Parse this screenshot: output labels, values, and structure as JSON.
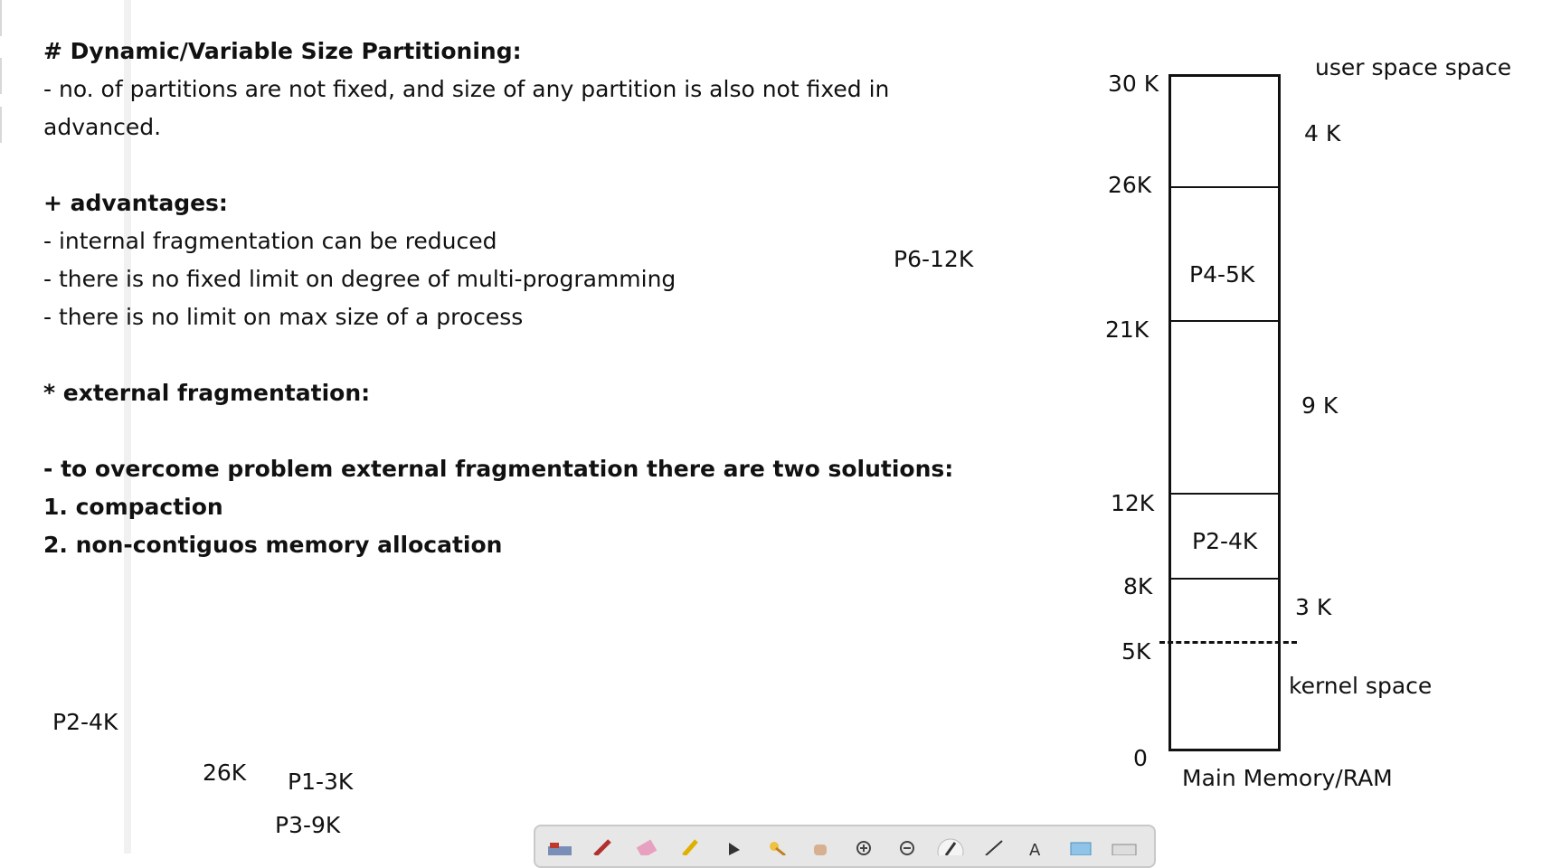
{
  "notes": {
    "heading": "# Dynamic/Variable Size Partitioning:",
    "line1": "- no. of partitions are not fixed, and size of any partition is also not fixed in",
    "line2": "advanced.",
    "adv_heading": "+ advantages:",
    "adv1": "- internal fragmentation can be reduced",
    "adv2": "- there is no fixed limit on degree of multi-programming",
    "adv3": "- there is no limit on max size of a process",
    "ext_heading": "* external fragmentation:",
    "solution_intro": "- to overcome problem external fragmentation there are two solutions:",
    "sol1": "1. compaction",
    "sol2": "2. non-contiguos memory allocation"
  },
  "floating": {
    "p6": "P6-12K",
    "p2_left": "P2-4K",
    "k26_left": "26K",
    "p1": "P1-3K",
    "p3": "P3-9K"
  },
  "memory": {
    "title": "Main Memory/RAM",
    "user_space": "user space space",
    "kernel_space": "kernel space",
    "addresses": [
      "30 K",
      "26K",
      "21K",
      "12K",
      "8K",
      "5K",
      "0"
    ],
    "free_sizes": [
      "4 K",
      "9 K",
      "3 K"
    ],
    "blocks": [
      "P4-5K",
      "P2-4K"
    ]
  },
  "toolbar": {
    "tools": [
      "ruler-icon",
      "pen-icon",
      "eraser-icon",
      "highlighter-icon",
      "pointer-icon",
      "laser-icon",
      "hand-icon",
      "zoom-in-icon",
      "zoom-out-icon",
      "brush-icon",
      "line-icon",
      "text-icon",
      "select-icon",
      "keyboard-icon"
    ]
  }
}
